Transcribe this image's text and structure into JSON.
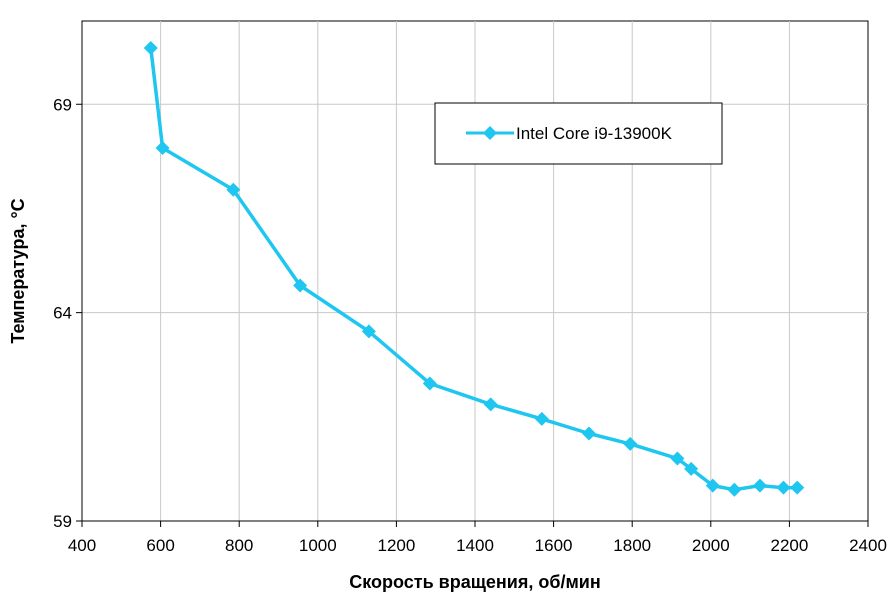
{
  "chart_data": {
    "type": "line",
    "title": "",
    "xlabel": "Скорость вращения, об/мин",
    "ylabel": "Температура, °C",
    "xlim": [
      400,
      2400
    ],
    "ylim": [
      59,
      71
    ],
    "x_ticks": [
      400,
      600,
      800,
      1000,
      1200,
      1400,
      1600,
      1800,
      2000,
      2200,
      2400
    ],
    "y_ticks": [
      59,
      64,
      69
    ],
    "x_tick_labels": [
      "400",
      "600",
      "800",
      "1000",
      "1200",
      "1400",
      "1600",
      "1800",
      "2000",
      "2200",
      "2400"
    ],
    "y_tick_labels": [
      "59",
      "64",
      "69"
    ],
    "grid": true,
    "legend": "top-right",
    "series": [
      {
        "name": "Intel Core i9-13900K",
        "color": "#1EC6F0",
        "marker": "diamond",
        "x": [
          575,
          605,
          785,
          955,
          1130,
          1285,
          1440,
          1570,
          1690,
          1795,
          1915,
          1950,
          2005,
          2060,
          2125,
          2185,
          2220
        ],
        "y": [
          70.35,
          67.95,
          66.95,
          64.65,
          63.55,
          62.3,
          61.8,
          61.45,
          61.1,
          60.85,
          60.5,
          60.25,
          59.85,
          59.75,
          59.85,
          59.8,
          59.8
        ]
      }
    ]
  }
}
